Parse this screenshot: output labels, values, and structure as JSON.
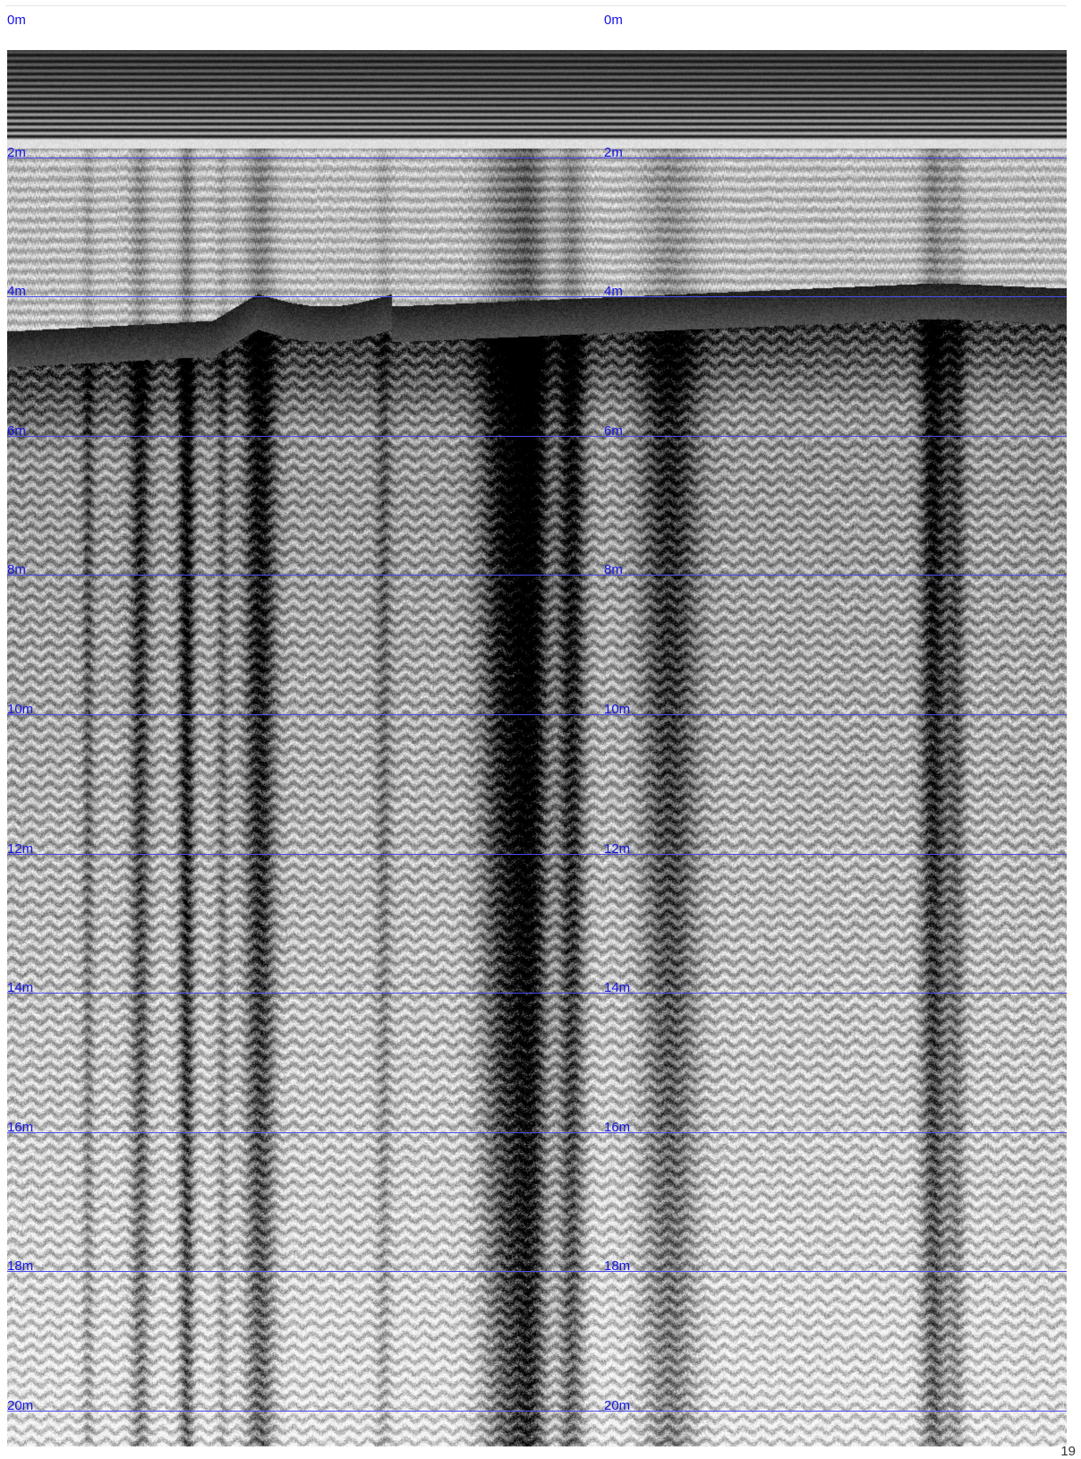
{
  "depth_scale": {
    "unit": "m",
    "marks": [
      "0m",
      "2m",
      "4m",
      "6m",
      "8m",
      "10m",
      "12m",
      "14m",
      "16m",
      "18m",
      "20m"
    ],
    "label_color": "#1414e6",
    "line_color": "#4a4aee"
  },
  "radargram": {
    "image": "grayscale ground-penetrating radar profile",
    "top_bands_color": "#111111",
    "background_color": "#f2f2f2",
    "reflector_color": "#0a0a0a"
  },
  "footer": {
    "page_number": "19"
  }
}
